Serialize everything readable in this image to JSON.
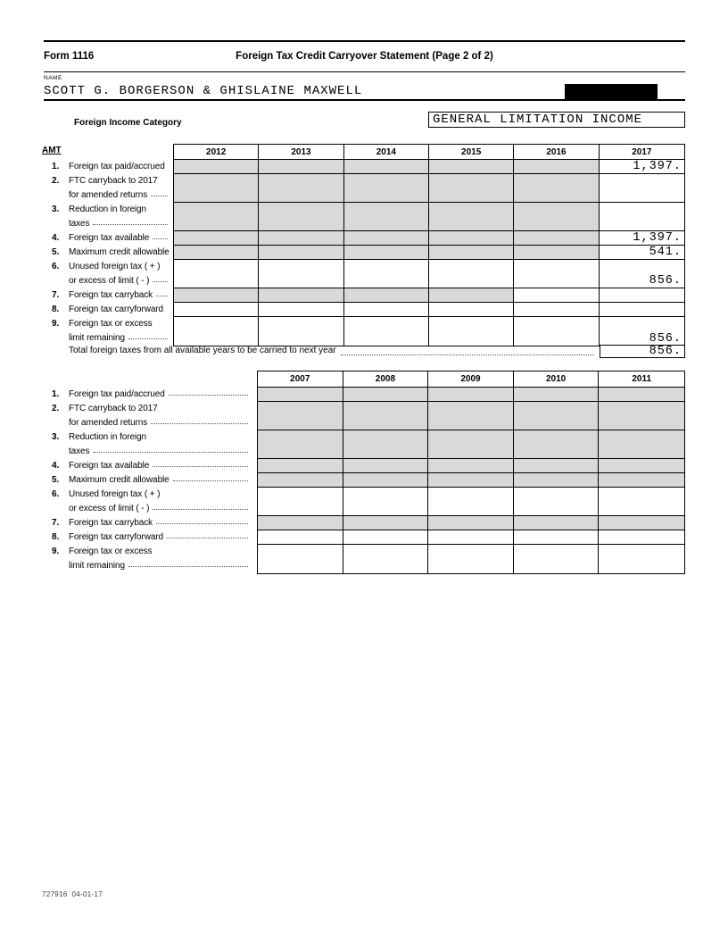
{
  "header": {
    "form_number": "Form 1116",
    "title": "Foreign Tax Credit Carryover Statement (Page 2 of 2)",
    "name_label": "NAME",
    "name_value": "SCOTT G. BORGERSON & GHISLAINE MAXWELL",
    "category_label": "Foreign Income Category",
    "category_value": "GENERAL LIMITATION INCOME"
  },
  "amt_label": "AMT",
  "row_labels": [
    {
      "num": "1.",
      "lines": [
        "Foreign tax paid/accrued"
      ]
    },
    {
      "num": "2.",
      "lines": [
        "FTC carryback to 2017",
        "for amended returns"
      ]
    },
    {
      "num": "3.",
      "lines": [
        "Reduction in foreign",
        "taxes"
      ]
    },
    {
      "num": "4.",
      "lines": [
        "Foreign tax available"
      ]
    },
    {
      "num": "5.",
      "lines": [
        "Maximum credit allowable"
      ]
    },
    {
      "num": "6.",
      "lines": [
        "Unused foreign tax ( + )",
        "or excess of limit ( - )"
      ]
    },
    {
      "num": "7.",
      "lines": [
        "Foreign tax carryback"
      ]
    },
    {
      "num": "8.",
      "lines": [
        "Foreign tax carryforward"
      ]
    },
    {
      "num": "9.",
      "lines": [
        "Foreign tax or excess",
        "limit remaining"
      ]
    }
  ],
  "table1": {
    "years": [
      "2012",
      "2013",
      "2014",
      "2015",
      "2016",
      "2017"
    ],
    "shaded": [
      [
        1,
        1,
        1,
        1,
        1,
        0
      ],
      [
        1,
        1,
        1,
        1,
        1,
        0
      ],
      [
        1,
        1,
        1,
        1,
        1,
        0
      ],
      [
        1,
        1,
        1,
        1,
        1,
        0
      ],
      [
        1,
        1,
        1,
        1,
        1,
        0
      ],
      [
        0,
        0,
        0,
        0,
        0,
        0
      ],
      [
        1,
        1,
        1,
        1,
        0,
        0
      ],
      [
        0,
        0,
        0,
        0,
        0,
        0
      ],
      [
        0,
        0,
        0,
        0,
        0,
        0
      ]
    ],
    "values": [
      [
        "",
        "",
        "",
        "",
        "",
        "1,397."
      ],
      [
        "",
        "",
        "",
        "",
        "",
        ""
      ],
      [
        "",
        "",
        "",
        "",
        "",
        ""
      ],
      [
        "",
        "",
        "",
        "",
        "",
        "1,397."
      ],
      [
        "",
        "",
        "",
        "",
        "",
        "541."
      ],
      [
        "",
        "",
        "",
        "",
        "",
        "856."
      ],
      [
        "",
        "",
        "",
        "",
        "",
        ""
      ],
      [
        "",
        "",
        "",
        "",
        "",
        ""
      ],
      [
        "",
        "",
        "",
        "",
        "",
        "856."
      ]
    ],
    "leaders": [
      false,
      true,
      true,
      true,
      false,
      true,
      true,
      false,
      true
    ]
  },
  "table2": {
    "years": [
      "2007",
      "2008",
      "2009",
      "2010",
      "2011"
    ],
    "shaded": [
      [
        1,
        1,
        1,
        1,
        1
      ],
      [
        1,
        1,
        1,
        1,
        1
      ],
      [
        1,
        1,
        1,
        1,
        1
      ],
      [
        1,
        1,
        1,
        1,
        1
      ],
      [
        1,
        1,
        1,
        1,
        1
      ],
      [
        0,
        0,
        0,
        0,
        0
      ],
      [
        1,
        1,
        1,
        1,
        1
      ],
      [
        0,
        0,
        0,
        0,
        0
      ],
      [
        0,
        0,
        0,
        0,
        0
      ]
    ],
    "values": [
      [
        "",
        "",
        "",
        "",
        ""
      ],
      [
        "",
        "",
        "",
        "",
        ""
      ],
      [
        "",
        "",
        "",
        "",
        ""
      ],
      [
        "",
        "",
        "",
        "",
        ""
      ],
      [
        "",
        "",
        "",
        "",
        ""
      ],
      [
        "",
        "",
        "",
        "",
        ""
      ],
      [
        "",
        "",
        "",
        "",
        ""
      ],
      [
        "",
        "",
        "",
        "",
        ""
      ],
      [
        "",
        "",
        "",
        "",
        ""
      ]
    ],
    "leaders": [
      true,
      true,
      true,
      true,
      true,
      true,
      true,
      true,
      true
    ]
  },
  "total_line": {
    "label": "Total foreign taxes from all available years to be carried to next year",
    "value": "856."
  },
  "footer": {
    "code": "727916  04-01-17"
  },
  "colors": {
    "shade": "#d9d9d9",
    "ink": "#000000"
  }
}
